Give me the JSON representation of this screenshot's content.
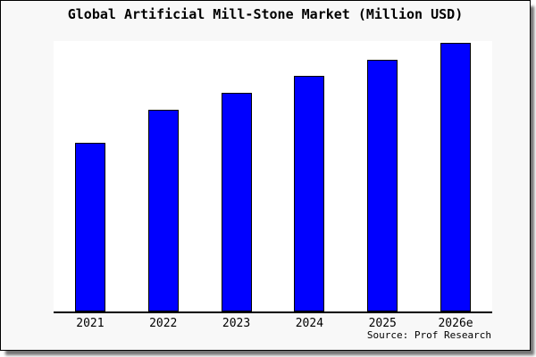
{
  "title": "Global Artificial Mill-Stone Market (Million USD)",
  "source": "Source: Prof Research",
  "colors": {
    "bar_fill": "#0000ff",
    "bar_border": "#000000",
    "figure_background": "#f8f8f8",
    "plot_background": "#ffffff",
    "figure_border": "#000000",
    "axis_line": "#000000"
  },
  "chart_data": {
    "type": "bar",
    "title": "Global Artificial Mill-Stone Market (Million USD)",
    "categories": [
      "2021",
      "2022",
      "2023",
      "2024",
      "2025",
      "2026e"
    ],
    "values": [
      189,
      226,
      245,
      264,
      282,
      301
    ],
    "xlabel": "",
    "ylabel": "",
    "ylim": [
      0,
      305
    ],
    "y_axis_labels_visible": false,
    "grid": false,
    "legend": false,
    "annotation": "Source: Prof Research"
  }
}
